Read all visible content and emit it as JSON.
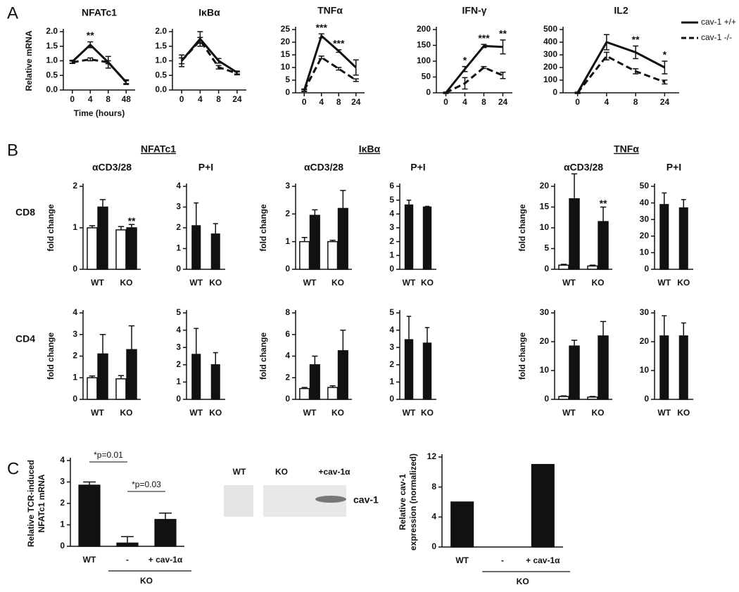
{
  "panels": [
    "A",
    "B",
    "C"
  ],
  "groups": [
    "NFATc1",
    "IκBα",
    "TNFα"
  ],
  "rows": [
    "CD8",
    "CD4"
  ],
  "blot": {
    "lanes": [
      "WT",
      "KO",
      "+cav-1α"
    ],
    "label": "cav-1"
  },
  "chart_data": [
    {
      "type": "line",
      "title": "NFATc1",
      "ylabel": [
        "Relative mRNA"
      ],
      "xlabel": "Time (hours)",
      "categories": [
        "0",
        "4",
        "8",
        "48"
      ],
      "ylim": [
        0,
        2
      ],
      "yticks": [
        {
          "value": 0,
          "label": "0.0"
        },
        0.5,
        {
          "value": 1,
          "label": "1.0"
        },
        1.5,
        {
          "value": 2,
          "label": "2.0"
        }
      ],
      "series": [
        {
          "style": "solid",
          "color": "#111",
          "values": [
            0.97,
            1.55,
            0.95,
            0.27
          ],
          "errors": [
            0.05,
            0.1,
            0.2,
            0.08
          ],
          "stars": [
            null,
            "**",
            null,
            null
          ]
        },
        {
          "style": "dashed",
          "color": "#111",
          "values": [
            0.95,
            1.05,
            0.95,
            0.27
          ],
          "errors": [
            0.04,
            0.05,
            0.05,
            0.05
          ]
        }
      ]
    },
    {
      "type": "line",
      "title": "IκBα",
      "categories": [
        "0",
        "4",
        "8",
        "24"
      ],
      "ylim": [
        0,
        2
      ],
      "yticks": [
        {
          "value": 0,
          "label": "0.0"
        },
        0.5,
        {
          "value": 1,
          "label": "1.0"
        },
        1.5,
        {
          "value": 2,
          "label": "2.0"
        }
      ],
      "series": [
        {
          "style": "solid",
          "color": "#111",
          "values": [
            1.0,
            1.75,
            1.0,
            0.6
          ],
          "errors": [
            0.2,
            0.25,
            0.08,
            0.05
          ]
        },
        {
          "style": "dashed",
          "color": "#111",
          "values": [
            1.0,
            1.7,
            0.78,
            0.57
          ],
          "errors": [
            0.1,
            0.1,
            0.06,
            0.05
          ]
        }
      ]
    },
    {
      "type": "line",
      "title": "TNFα",
      "categories": [
        "0",
        "4",
        "8",
        "24"
      ],
      "ylim": [
        0,
        25
      ],
      "yticks": [
        0,
        5,
        10,
        15,
        20,
        25
      ],
      "series": [
        {
          "style": "solid",
          "color": "#111",
          "values": [
            1,
            22.5,
            16.5,
            10
          ],
          "errors": [
            0.5,
            0.8,
            0.5,
            3
          ],
          "stars": [
            null,
            "***",
            "***",
            null
          ]
        },
        {
          "style": "dashed",
          "color": "#111",
          "values": [
            1,
            14,
            9.5,
            5
          ],
          "errors": [
            0.3,
            0.5,
            0.5,
            0.5
          ]
        }
      ]
    },
    {
      "type": "line",
      "title": "IFN-γ",
      "categories": [
        "0",
        "4",
        "8",
        "24"
      ],
      "ylim": [
        0,
        200
      ],
      "yticks": [
        0,
        50,
        100,
        150,
        200
      ],
      "series": [
        {
          "style": "solid",
          "color": "#111",
          "values": [
            0,
            75,
            148,
            145
          ],
          "errors": [
            2,
            8,
            5,
            22
          ],
          "stars": [
            null,
            "*",
            "***",
            "**"
          ]
        },
        {
          "style": "dashed",
          "color": "#111",
          "values": [
            0,
            30,
            80,
            55
          ],
          "errors": [
            2,
            18,
            3,
            10
          ]
        }
      ]
    },
    {
      "type": "line",
      "title": "IL2",
      "categories": [
        "0",
        "4",
        "8",
        "24"
      ],
      "ylim": [
        0,
        500
      ],
      "yticks": [
        0,
        100,
        200,
        300,
        400,
        500
      ],
      "series": [
        {
          "name": "cav-1 +/+",
          "style": "solid",
          "color": "#111",
          "values": [
            0,
            400,
            320,
            200
          ],
          "errors": [
            5,
            60,
            50,
            50
          ],
          "stars": [
            null,
            null,
            "**",
            "*"
          ]
        },
        {
          "name": "cav-1 -/-",
          "style": "dashed",
          "color": "#111",
          "values": [
            0,
            290,
            170,
            85
          ],
          "errors": [
            5,
            30,
            20,
            15
          ]
        }
      ]
    },
    {
      "type": "bar",
      "title": "αCD3/28",
      "ylabel": [
        "fold change"
      ],
      "categories": [
        "WT",
        "KO"
      ],
      "ylim": [
        0,
        2
      ],
      "yticks": [
        0,
        1,
        2
      ],
      "series": [
        {
          "color": "#ffffff",
          "values": [
            1.0,
            0.95
          ],
          "errors": [
            0.05,
            0.08
          ]
        },
        {
          "color": "#111111",
          "values": [
            1.5,
            1.0
          ],
          "errors": [
            0.18,
            0.08
          ],
          "stars": [
            null,
            "**"
          ]
        }
      ]
    },
    {
      "type": "bar",
      "title": "P+I",
      "categories": [
        "WT",
        "KO"
      ],
      "ylim": [
        0,
        4
      ],
      "yticks": [
        0,
        1,
        2,
        3,
        4
      ],
      "series": [
        {
          "color": "#111111",
          "values": [
            2.1,
            1.7
          ],
          "errors": [
            1.1,
            0.5
          ]
        }
      ]
    },
    {
      "type": "bar",
      "title": "αCD3/28",
      "ylabel": [
        "fold change"
      ],
      "categories": [
        "WT",
        "KO"
      ],
      "ylim": [
        0,
        3
      ],
      "yticks": [
        0,
        1,
        2,
        3
      ],
      "series": [
        {
          "color": "#ffffff",
          "values": [
            1.0,
            1.0
          ],
          "errors": [
            0.15,
            0.05
          ]
        },
        {
          "color": "#111111",
          "values": [
            1.95,
            2.2
          ],
          "errors": [
            0.2,
            0.65
          ]
        }
      ]
    },
    {
      "type": "bar",
      "title": "P+I",
      "categories": [
        "WT",
        "KO"
      ],
      "ylim": [
        0,
        6
      ],
      "yticks": [
        0,
        1,
        2,
        3,
        4,
        5,
        6
      ],
      "series": [
        {
          "color": "#111111",
          "values": [
            4.65,
            4.5
          ],
          "errors": [
            0.35,
            0.05
          ]
        }
      ]
    },
    {
      "type": "bar",
      "title": "αCD3/28",
      "ylabel": [
        "fold change"
      ],
      "categories": [
        "WT",
        "KO"
      ],
      "ylim": [
        0,
        20
      ],
      "yticks": [
        0,
        5,
        10,
        15,
        20
      ],
      "series": [
        {
          "color": "#ffffff",
          "values": [
            1,
            0.8
          ],
          "errors": [
            0.2,
            0.2
          ]
        },
        {
          "color": "#111111",
          "values": [
            17,
            11.5
          ],
          "errors": [
            6,
            3.5
          ],
          "stars": [
            null,
            "**"
          ]
        }
      ]
    },
    {
      "type": "bar",
      "title": "P+I",
      "categories": [
        "WT",
        "KO"
      ],
      "ylim": [
        0,
        50
      ],
      "yticks": [
        0,
        10,
        20,
        30,
        40,
        50
      ],
      "series": [
        {
          "color": "#111111",
          "values": [
            39,
            37
          ],
          "errors": [
            7,
            5
          ]
        }
      ]
    },
    {
      "type": "bar",
      "ylabel": [
        "fold change"
      ],
      "categories": [
        "WT",
        "KO"
      ],
      "ylim": [
        0,
        4
      ],
      "yticks": [
        0,
        1,
        2,
        3,
        4
      ],
      "series": [
        {
          "color": "#ffffff",
          "values": [
            1.0,
            0.95
          ],
          "errors": [
            0.08,
            0.15
          ]
        },
        {
          "color": "#111111",
          "values": [
            2.1,
            2.3
          ],
          "errors": [
            0.9,
            1.1
          ]
        }
      ]
    },
    {
      "type": "bar",
      "categories": [
        "WT",
        "KO"
      ],
      "ylim": [
        0,
        5
      ],
      "yticks": [
        0,
        1,
        2,
        3,
        4,
        5
      ],
      "series": [
        {
          "color": "#111111",
          "values": [
            2.6,
            2.0
          ],
          "errors": [
            1.5,
            0.7
          ]
        }
      ]
    },
    {
      "type": "bar",
      "ylabel": [
        "fold change"
      ],
      "categories": [
        "WT",
        "KO"
      ],
      "ylim": [
        0,
        8
      ],
      "yticks": [
        0,
        2,
        4,
        6,
        8
      ],
      "series": [
        {
          "color": "#ffffff",
          "values": [
            1.0,
            1.1
          ],
          "errors": [
            0.1,
            0.15
          ]
        },
        {
          "color": "#111111",
          "values": [
            3.2,
            4.5
          ],
          "errors": [
            0.8,
            1.9
          ]
        }
      ]
    },
    {
      "type": "bar",
      "categories": [
        "WT",
        "KO"
      ],
      "ylim": [
        0,
        5
      ],
      "yticks": [
        0,
        1,
        2,
        3,
        4,
        5
      ],
      "series": [
        {
          "color": "#111111",
          "values": [
            3.45,
            3.25
          ],
          "errors": [
            1.35,
            0.9
          ]
        }
      ]
    },
    {
      "type": "bar",
      "ylabel": [
        "fold change"
      ],
      "categories": [
        "WT",
        "KO"
      ],
      "ylim": [
        0,
        30
      ],
      "yticks": [
        0,
        10,
        20,
        30
      ],
      "series": [
        {
          "color": "#ffffff",
          "values": [
            1,
            0.8
          ],
          "errors": [
            0.2,
            0.2
          ]
        },
        {
          "color": "#111111",
          "values": [
            18.5,
            22
          ],
          "errors": [
            2,
            5
          ]
        }
      ]
    },
    {
      "type": "bar",
      "categories": [
        "WT",
        "KO"
      ],
      "ylim": [
        0,
        30
      ],
      "yticks": [
        0,
        10,
        20,
        30
      ],
      "series": [
        {
          "color": "#111111",
          "values": [
            22,
            22
          ],
          "errors": [
            7,
            4.5
          ]
        }
      ]
    },
    {
      "type": "bar",
      "ylabel": [
        "Relative TCR-induced",
        "NFATc1 mRNA"
      ],
      "categories": [
        "WT",
        "-",
        "+ cav-1α"
      ],
      "group_label": "KO",
      "comparisons": [
        "*p=0.01",
        "*p=0.03"
      ],
      "ylim": [
        0,
        4
      ],
      "yticks": [
        0,
        1,
        2,
        3,
        4
      ],
      "series": [
        {
          "color": "#111111",
          "values": [
            2.85,
            0.15,
            1.25
          ],
          "errors": [
            0.15,
            0.3,
            0.3
          ]
        }
      ]
    },
    {
      "type": "bar",
      "ylabel": [
        "Relative cav-1",
        "expression (normalized)"
      ],
      "categories": [
        "WT",
        "-",
        "+ cav-1α"
      ],
      "group_label": "KO",
      "ylim": [
        0,
        12
      ],
      "yticks": [
        0,
        4,
        8,
        12
      ],
      "series": [
        {
          "color": "#111111",
          "values": [
            6,
            0,
            11
          ]
        }
      ]
    }
  ]
}
